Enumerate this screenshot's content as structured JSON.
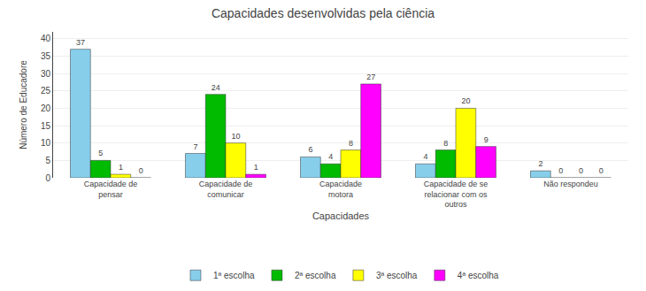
{
  "chart_data": {
    "type": "bar",
    "title": "Capacidades desenvolvidas pela ciência",
    "xlabel": "Capacidades",
    "ylabel": "Número de Educadore",
    "categories": [
      "Capacidade de\npensar",
      "Capacidade de\ncomunicar",
      "Capacidade\nmotora",
      "Capacidade de se\nrelacionar com os\noutros",
      "Não respondeu"
    ],
    "series": [
      {
        "name": "1ª escolha",
        "color": "#87CEEB",
        "values": [
          37,
          7,
          6,
          4,
          2
        ]
      },
      {
        "name": "2ª escolha",
        "color": "#00BB00",
        "values": [
          5,
          24,
          4,
          8,
          0
        ]
      },
      {
        "name": "3ª escolha",
        "color": "#FFFF00",
        "values": [
          1,
          10,
          8,
          20,
          0
        ]
      },
      {
        "name": "4ª escolha",
        "color": "#FF00FF",
        "values": [
          0,
          1,
          27,
          9,
          0
        ]
      }
    ],
    "ylim": [
      0,
      42
    ],
    "yticks": [
      0,
      5,
      10,
      15,
      20,
      25,
      30,
      35,
      40
    ],
    "grid": true,
    "legend": "lower center",
    "data_labels": true
  }
}
